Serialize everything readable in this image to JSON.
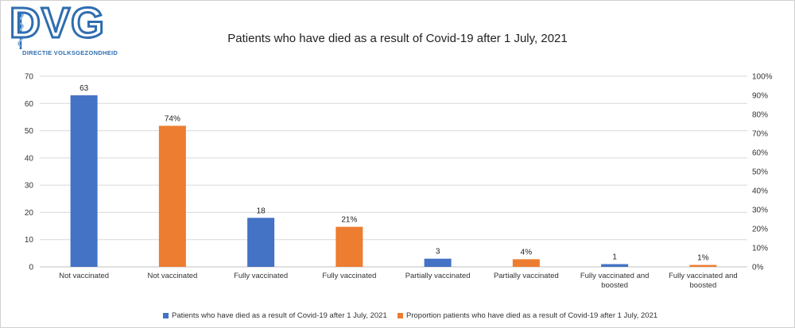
{
  "logo": {
    "letters": "DVG",
    "subtitle": "DIRECTIE VOLKSGEZONDHEID"
  },
  "colors": {
    "series1": "#4472c4",
    "series2": "#ed7d31",
    "grid": "#d9d9d9",
    "text": "#333333"
  },
  "chart_data": {
    "type": "bar",
    "title": "Patients who have died as a result of Covid-19 after 1 July, 2021",
    "grid": true,
    "legend_position": "bottom",
    "left_axis": {
      "ylim": [
        0,
        70
      ],
      "ticks": [
        "0",
        "10",
        "20",
        "30",
        "40",
        "50",
        "60",
        "70"
      ]
    },
    "right_axis": {
      "ylim": [
        0,
        100
      ],
      "ticks": [
        "0%",
        "10%",
        "20%",
        "30%",
        "40%",
        "50%",
        "60%",
        "70%",
        "80%",
        "90%",
        "100%"
      ]
    },
    "categories": [
      [
        "Not vaccinated"
      ],
      [
        "Not vaccinated"
      ],
      [
        "Fully vaccinated"
      ],
      [
        "Fully vaccinated"
      ],
      [
        "Partially vaccinated"
      ],
      [
        "Partially vaccinated"
      ],
      [
        "Fully vaccinated and",
        "boosted"
      ],
      [
        "Fully vaccinated and",
        "boosted"
      ]
    ],
    "series": [
      {
        "name": "Patients who have died as a result of Covid-19 after 1 July, 2021",
        "axis": "left",
        "color": "#4472c4",
        "positions": [
          0,
          2,
          4,
          6
        ],
        "values": [
          63,
          18,
          3,
          1
        ],
        "labels": [
          "63",
          "18",
          "3",
          "1"
        ]
      },
      {
        "name": "Proportion patients who have died as a result of Covid-19 after 1 July, 2021",
        "axis": "right",
        "color": "#ed7d31",
        "positions": [
          1,
          3,
          5,
          7
        ],
        "values": [
          74,
          21,
          4,
          1
        ],
        "labels": [
          "74%",
          "21%",
          "4%",
          "1%"
        ]
      }
    ]
  }
}
